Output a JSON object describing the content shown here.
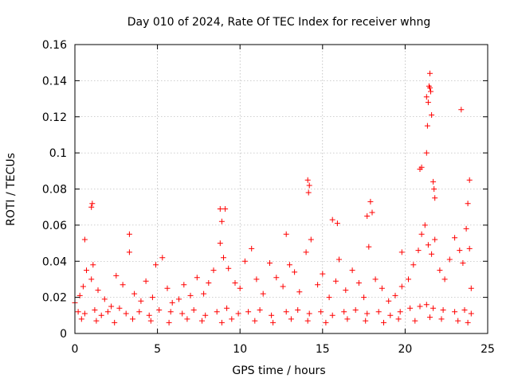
{
  "chart_data": {
    "type": "scatter",
    "title": "Day 010 of 2024, Rate Of TEC Index for receiver whng",
    "xlabel": "GPS time / hours",
    "ylabel": "ROTI / TECUs",
    "xlim": [
      0,
      25
    ],
    "ylim": [
      0,
      0.16
    ],
    "xticks": [
      0,
      5,
      10,
      15,
      20,
      25
    ],
    "yticks": [
      0,
      0.02,
      0.04,
      0.06,
      0.08,
      0.1,
      0.12,
      0.14,
      0.16
    ],
    "xtick_labels": [
      "0",
      "5",
      "10",
      "15",
      "20",
      "25"
    ],
    "ytick_labels": [
      "0",
      "0.02",
      "0.04",
      "0.06",
      "0.08",
      "0.1",
      "0.12",
      "0.14",
      "0.16"
    ],
    "grid": true,
    "marker": "+",
    "color": "#ff0000",
    "series": [
      {
        "name": "ROTI",
        "x": [
          0.0,
          0.3,
          0.5,
          0.7,
          1.0,
          1.1,
          1.4,
          1.8,
          2.2,
          2.5,
          2.9,
          3.3,
          3.6,
          4.0,
          4.3,
          4.7,
          4.9,
          5.3,
          5.6,
          5.9,
          6.3,
          6.6,
          7.0,
          7.4,
          7.8,
          8.1,
          8.4,
          8.8,
          9.0,
          9.3,
          9.7,
          10.0,
          10.3,
          10.7,
          11.0,
          11.4,
          11.8,
          12.2,
          12.6,
          13.0,
          13.3,
          13.6,
          14.0,
          14.3,
          14.7,
          15.0,
          15.4,
          15.8,
          16.0,
          16.4,
          16.8,
          17.2,
          17.5,
          17.8,
          18.2,
          18.6,
          19.0,
          19.4,
          19.8,
          20.2,
          20.5,
          20.8,
          21.0,
          21.2,
          21.4,
          21.6,
          21.8,
          22.1,
          22.4,
          22.7,
          23.0,
          23.3,
          23.5,
          23.7,
          23.9,
          24.0,
          0.2,
          0.6,
          1.2,
          1.6,
          2.0,
          2.7,
          3.1,
          3.9,
          4.5,
          5.1,
          5.8,
          6.5,
          7.2,
          7.9,
          8.6,
          9.2,
          9.9,
          10.5,
          11.2,
          11.9,
          12.8,
          13.5,
          14.2,
          14.9,
          15.6,
          16.3,
          17.0,
          17.7,
          18.4,
          19.1,
          19.7,
          20.3,
          20.9,
          21.3,
          21.7,
          22.3,
          23.0,
          23.6,
          24.0,
          0.4,
          1.3,
          2.4,
          3.5,
          4.6,
          5.7,
          6.8,
          7.7,
          8.9,
          9.5,
          10.9,
          12.0,
          13.1,
          14.1,
          15.2,
          16.5,
          17.6,
          18.7,
          19.6,
          20.6,
          21.5,
          22.2,
          23.2,
          23.8,
          1.0,
          1.05,
          14.1,
          14.2,
          14.15,
          17.9,
          18.0,
          17.7,
          20.9,
          21.0,
          21.3,
          21.35,
          21.4,
          21.45,
          21.5,
          21.5,
          21.55,
          21.3,
          21.6,
          21.7,
          21.75,
          21.8,
          23.4,
          23.9,
          23.8,
          8.8,
          9.1,
          8.9,
          15.6,
          15.9,
          3.3,
          0.6,
          12.8,
          19.8
        ],
        "y": [
          0.017,
          0.021,
          0.026,
          0.035,
          0.03,
          0.038,
          0.024,
          0.019,
          0.015,
          0.032,
          0.027,
          0.045,
          0.022,
          0.018,
          0.029,
          0.02,
          0.038,
          0.042,
          0.025,
          0.017,
          0.019,
          0.027,
          0.021,
          0.031,
          0.022,
          0.028,
          0.035,
          0.05,
          0.042,
          0.036,
          0.028,
          0.025,
          0.04,
          0.047,
          0.03,
          0.022,
          0.039,
          0.031,
          0.026,
          0.038,
          0.034,
          0.023,
          0.045,
          0.052,
          0.027,
          0.033,
          0.02,
          0.029,
          0.041,
          0.024,
          0.035,
          0.028,
          0.02,
          0.048,
          0.03,
          0.025,
          0.018,
          0.021,
          0.026,
          0.03,
          0.038,
          0.046,
          0.055,
          0.06,
          0.049,
          0.044,
          0.052,
          0.035,
          0.03,
          0.041,
          0.053,
          0.046,
          0.039,
          0.058,
          0.047,
          0.025,
          0.012,
          0.011,
          0.013,
          0.01,
          0.012,
          0.014,
          0.011,
          0.012,
          0.01,
          0.013,
          0.012,
          0.011,
          0.013,
          0.01,
          0.012,
          0.014,
          0.011,
          0.012,
          0.013,
          0.01,
          0.012,
          0.013,
          0.011,
          0.012,
          0.01,
          0.012,
          0.013,
          0.011,
          0.012,
          0.01,
          0.012,
          0.014,
          0.015,
          0.016,
          0.014,
          0.013,
          0.012,
          0.013,
          0.011,
          0.008,
          0.007,
          0.006,
          0.008,
          0.007,
          0.006,
          0.008,
          0.007,
          0.006,
          0.008,
          0.007,
          0.006,
          0.008,
          0.007,
          0.006,
          0.008,
          0.007,
          0.006,
          0.008,
          0.007,
          0.009,
          0.008,
          0.007,
          0.006,
          0.07,
          0.072,
          0.085,
          0.082,
          0.078,
          0.073,
          0.067,
          0.065,
          0.091,
          0.092,
          0.1,
          0.115,
          0.128,
          0.137,
          0.144,
          0.136,
          0.134,
          0.131,
          0.121,
          0.084,
          0.08,
          0.075,
          0.124,
          0.085,
          0.072,
          0.069,
          0.069,
          0.062,
          0.063,
          0.061,
          0.055,
          0.052,
          0.055,
          0.045
        ]
      }
    ]
  }
}
